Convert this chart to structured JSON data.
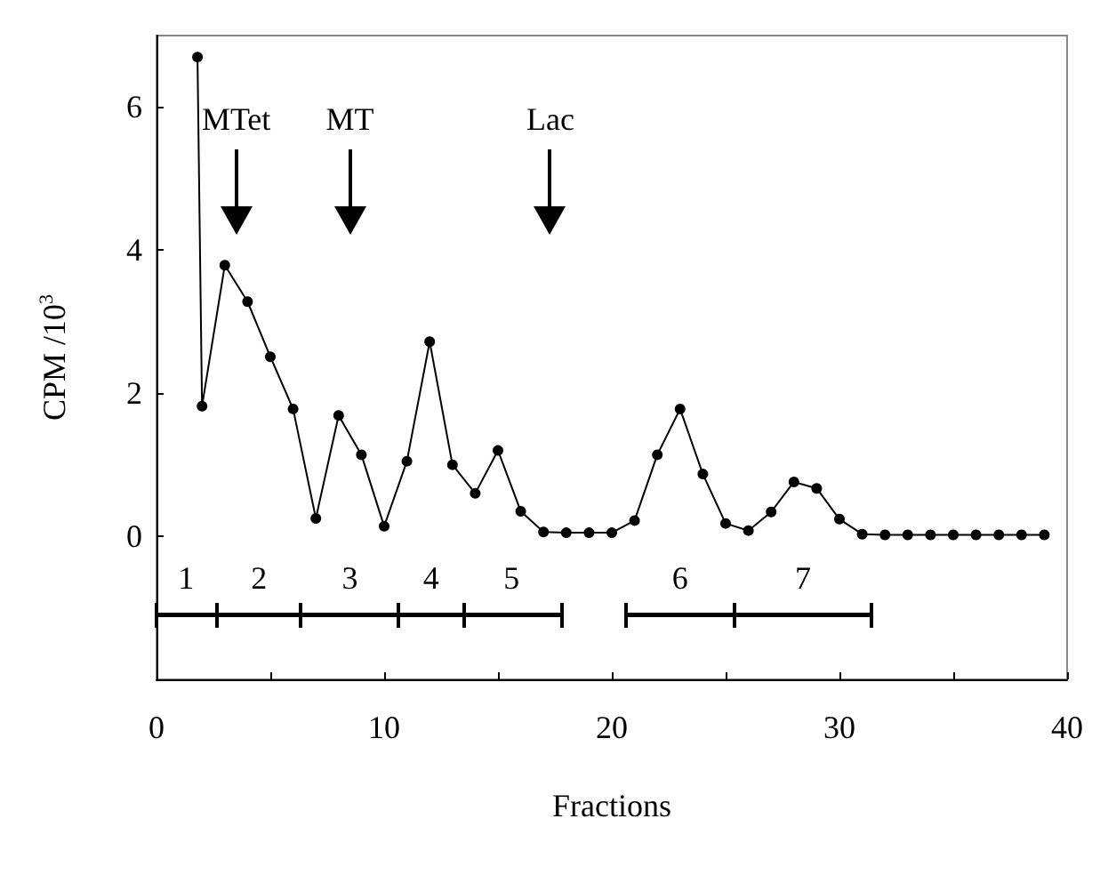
{
  "chart_data": {
    "type": "line",
    "xlabel": "Fractions",
    "ylabel": "CPM /10$^{3}$",
    "series": [
      {
        "color": "#000000",
        "x": [
          1.8,
          2,
          3,
          4,
          5,
          6,
          7,
          8,
          9,
          10,
          11,
          12,
          13,
          14,
          15,
          16,
          17,
          18,
          19,
          20,
          21,
          22,
          23,
          24,
          25,
          26,
          27,
          28,
          29,
          30,
          31,
          32,
          33,
          34,
          35,
          36,
          37,
          38,
          39
        ],
        "values": [
          6.7,
          1.82,
          3.79,
          3.28,
          2.51,
          1.78,
          0.25,
          1.69,
          1.14,
          0.14,
          1.05,
          2.72,
          1.0,
          0.6,
          1.2,
          0.35,
          0.06,
          0.05,
          0.05,
          0.05,
          0.22,
          1.14,
          1.78,
          0.87,
          0.18,
          0.08,
          0.34,
          0.76,
          0.67,
          0.24,
          0.03,
          0.02,
          0.02,
          0.02,
          0.02,
          0.02,
          0.02,
          0.02,
          0.02
        ]
      },
      {
        "color": "#000000",
        "marker": "none",
        "x": [
          0,
          2.65,
          6.36,
          10.64,
          13.48,
          17.78,
          19,
          20.6,
          25.4,
          31.4
        ],
        "values": [
          -1.1,
          -1.1,
          -1.1,
          -1.1,
          -1.1,
          -1.1,
          null,
          -1.1,
          -1.1,
          -1.1
        ]
      }
    ],
    "xlim": [
      0,
      40
    ],
    "xticks": [
      0,
      {
        "value": 5,
        "label": null
      },
      10,
      {
        "value": 15,
        "label": null
      },
      20,
      {
        "value": 25,
        "label": null
      },
      30,
      {
        "value": 35,
        "label": null
      },
      40
    ],
    "ylim": [
      -2,
      7
    ],
    "yticks": [
      0,
      2,
      4,
      6
    ],
    "marker": "circle",
    "line_style": "solid",
    "grid": false,
    "ref_lines": [
      {
        "axis": "x",
        "value": 3.5,
        "label": "MTet"
      },
      {
        "axis": "x",
        "value": 8.5,
        "label": "MT"
      },
      {
        "axis": "x",
        "value": 17.3,
        "label": "Lac"
      }
    ],
    "annotations": [
      {
        "text": "1",
        "x": 1.3,
        "y": -1.1
      },
      {
        "text": "2",
        "x": 4.5,
        "y": -1.1
      },
      {
        "text": "3",
        "x": 8.5,
        "y": -1.1
      },
      {
        "text": "4",
        "x": 12.06,
        "y": -1.1
      },
      {
        "text": "5",
        "x": 15.6,
        "y": -1.1
      },
      {
        "text": "6",
        "x": 23,
        "y": -1.1
      },
      {
        "text": "7",
        "x": 28.4,
        "y": -1.1
      }
    ]
  }
}
